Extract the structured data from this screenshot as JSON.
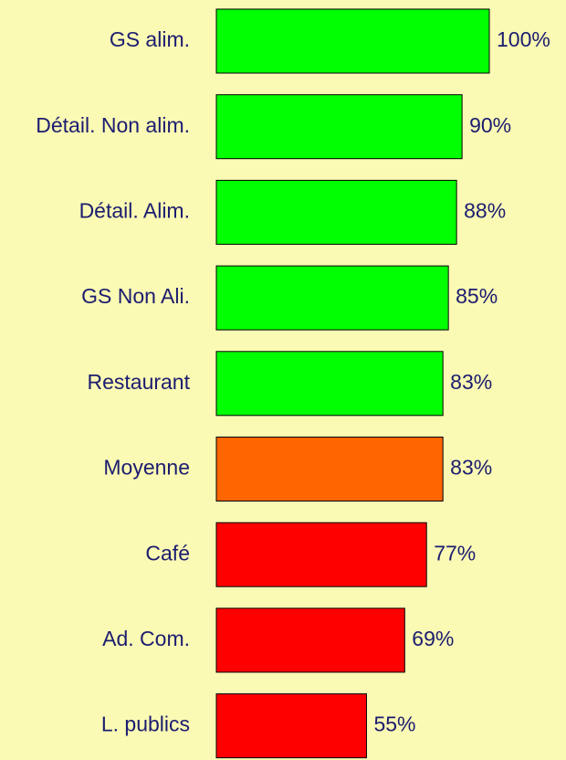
{
  "chart_data": {
    "type": "hbar",
    "categories": [
      "GS alim.",
      "Détail. Non alim.",
      "Détail. Alim.",
      "GS Non Ali.",
      "Restaurant",
      "Moyenne",
      "Café",
      "Ad. Com.",
      "L. publics"
    ],
    "values": [
      100,
      90,
      88,
      85,
      83,
      83,
      77,
      69,
      55
    ],
    "value_labels": [
      "100%",
      "90%",
      "88%",
      "85%",
      "83%",
      "83%",
      "77%",
      "69%",
      "55%"
    ],
    "colors": [
      "#00ff00",
      "#00ff00",
      "#00ff00",
      "#00ff00",
      "#00ff00",
      "#ff6600",
      "#ff0000",
      "#ff0000",
      "#ff0000"
    ]
  }
}
